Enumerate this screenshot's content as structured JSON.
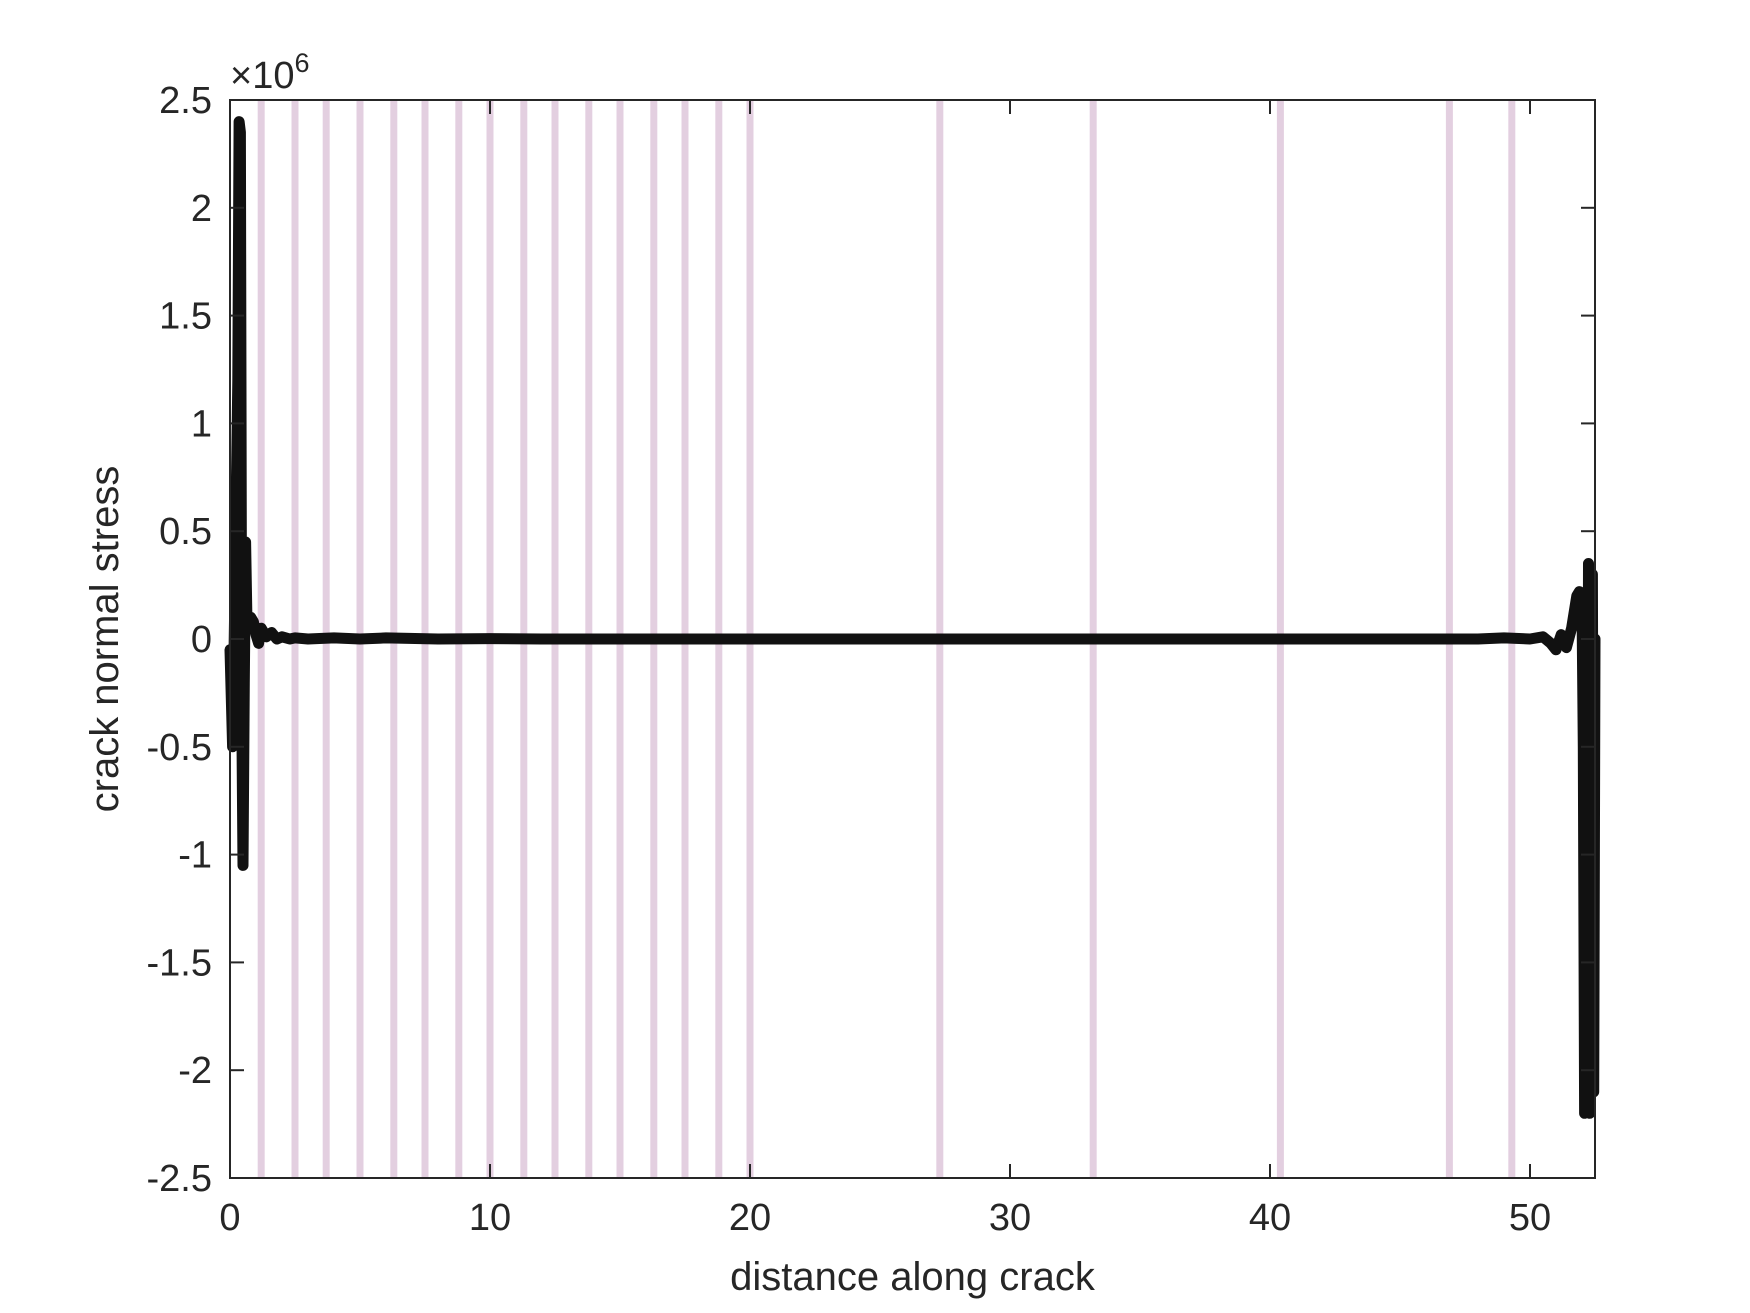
{
  "chart_data": {
    "type": "line",
    "title": "",
    "xlabel": "distance along crack",
    "ylabel": "crack normal stress",
    "y_exponent_label": "×10",
    "y_exponent_power": "6",
    "xlim": [
      0,
      52.5
    ],
    "ylim": [
      -2.5,
      2.5
    ],
    "x_ticks": [
      0,
      10,
      20,
      30,
      40,
      50
    ],
    "x_tick_labels": [
      "0",
      "10",
      "20",
      "30",
      "40",
      "50"
    ],
    "y_ticks": [
      2.5,
      2,
      1.5,
      1,
      0.5,
      0,
      -0.5,
      -1,
      -1.5,
      -2,
      -2.5
    ],
    "y_tick_labels": [
      "2.5",
      "2",
      "1.5",
      "1",
      "0.5",
      "0",
      "-0.5",
      "-1",
      "-1.5",
      "-2",
      "-2.5"
    ],
    "grid": false,
    "legend": "none",
    "line_color": "#111111",
    "marker_color": "#e3cfe0",
    "vertical_markers_x": [
      1.2,
      2.5,
      3.7,
      5.0,
      6.3,
      7.5,
      8.8,
      10.0,
      11.3,
      12.5,
      13.8,
      15.0,
      16.3,
      17.5,
      18.8,
      20.0,
      27.3,
      33.2,
      40.4,
      46.9,
      49.3
    ],
    "series": [
      {
        "x": [
          0.0,
          0.1,
          0.2,
          0.3,
          0.35,
          0.4,
          0.45,
          0.5,
          0.55,
          0.6,
          0.65,
          0.7,
          0.8,
          0.9,
          1.0,
          1.1,
          1.2,
          1.4,
          1.6,
          1.8,
          2.0,
          2.3,
          2.5,
          3.0,
          4.0,
          5.0,
          6.0,
          8.0,
          10.0,
          12.0,
          15.0,
          20.0,
          25.0,
          30.0,
          35.0,
          40.0,
          45.0,
          48.0,
          49.0,
          50.0,
          50.5,
          50.8,
          51.0,
          51.2,
          51.4,
          51.6,
          51.8,
          51.9,
          52.0,
          52.05,
          52.1,
          52.15,
          52.2,
          52.25,
          52.3,
          52.35,
          52.4,
          52.45,
          52.5
        ],
        "y": [
          -0.05,
          -0.5,
          0.3,
          1.2,
          2.4,
          2.35,
          -0.3,
          -1.05,
          -0.2,
          0.45,
          0.1,
          0.05,
          0.1,
          0.08,
          0.02,
          -0.02,
          0.05,
          0.01,
          0.03,
          0.0,
          0.01,
          0.0,
          0.005,
          0.0,
          0.005,
          0.0,
          0.005,
          0.0,
          0.002,
          0.0,
          0.0,
          0.0,
          0.0,
          0.0,
          0.0,
          0.0,
          0.0,
          0.0,
          0.005,
          0.0,
          0.01,
          -0.02,
          -0.05,
          0.02,
          -0.04,
          0.05,
          0.2,
          0.22,
          0.15,
          -0.5,
          -2.2,
          -1.8,
          -2.15,
          0.35,
          -2.2,
          -2.0,
          0.3,
          -2.1,
          0.0
        ]
      }
    ]
  }
}
